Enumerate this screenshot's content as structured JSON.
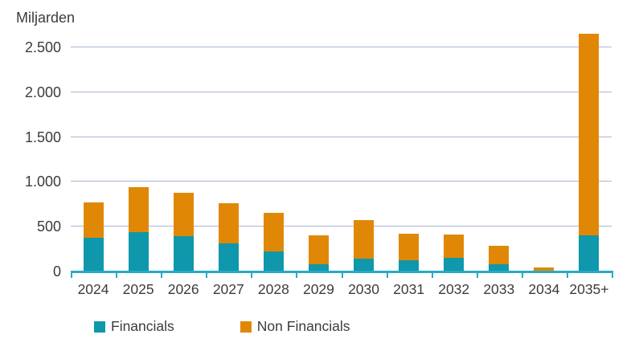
{
  "title": "Miljarden",
  "colors": {
    "financials": "#0f97ab",
    "non_financials": "#e08806",
    "axis": "#2aa9c5",
    "gridline": "#aab7d3",
    "text": "#3c3c3b"
  },
  "legend": {
    "items": [
      {
        "label": "Financials",
        "series": "Financials"
      },
      {
        "label": "Non Financials",
        "series": "Non Financials"
      }
    ]
  },
  "chart_data": {
    "type": "bar",
    "stacked": true,
    "title": "Miljarden",
    "ylabel": "Miljarden",
    "xlabel": "",
    "categories": [
      "2024",
      "2025",
      "2026",
      "2027",
      "2028",
      "2029",
      "2030",
      "2031",
      "2032",
      "2033",
      "2034",
      "2035+"
    ],
    "series": [
      {
        "name": "Financials",
        "color": "#0f97ab",
        "values": [
          380,
          440,
          390,
          310,
          220,
          85,
          145,
          125,
          150,
          85,
          10,
          400
        ]
      },
      {
        "name": "Non Financials",
        "color": "#e08806",
        "values": [
          390,
          505,
          490,
          450,
          430,
          315,
          430,
          300,
          260,
          205,
          35,
          2250
        ]
      }
    ],
    "totals": [
      770,
      945,
      880,
      760,
      650,
      400,
      575,
      425,
      410,
      290,
      45,
      2650
    ],
    "ylim": [
      0,
      2500
    ],
    "ytick_step": 500,
    "ytick_labels": [
      "0",
      "500",
      "1.000",
      "1.500",
      "2.000",
      "2.500"
    ],
    "grid": true,
    "legend_position": "bottom"
  }
}
